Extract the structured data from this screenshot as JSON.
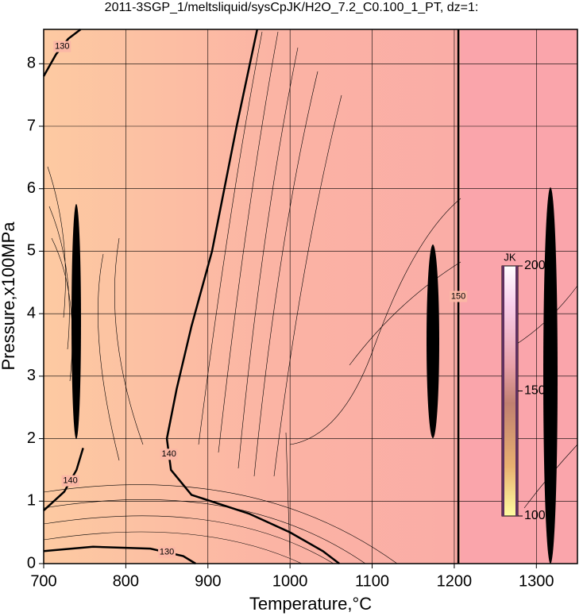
{
  "chart_data": {
    "type": "contour",
    "title": "2011-3SGP_1/meltsliquid/sysCpJK/H2O_7.2_C0.100_1_PT, dz=1:",
    "xlabel": "Temperature,°C",
    "ylabel": "Pressure,x100MPa",
    "xlim": [
      700,
      1350
    ],
    "ylim": [
      0,
      8.55
    ],
    "xticks": [
      700,
      800,
      900,
      1000,
      1100,
      1200,
      1300
    ],
    "yticks": [
      0,
      1,
      2,
      3,
      4,
      5,
      6,
      7,
      8
    ],
    "grid": true,
    "contours": [
      {
        "level": 140,
        "x": [
          960,
          935,
          905,
          880,
          862,
          850,
          855,
          880,
          950,
          1000,
          1040,
          1060
        ],
        "y": [
          8.55,
          7,
          5,
          3.8,
          2.8,
          2,
          1.5,
          1.1,
          0.8,
          0.5,
          0.2,
          0
        ]
      },
      {
        "level": 150,
        "x": [
          1205,
          1205
        ],
        "y": [
          0,
          8.55
        ]
      },
      {
        "level": 130,
        "x": [
          700,
          760,
          830,
          870,
          885
        ],
        "y": [
          0.2,
          0.27,
          0.24,
          0.12,
          0
        ]
      },
      {
        "level": 130,
        "x": [
          700,
          715,
          730,
          745
        ],
        "y": [
          7.8,
          8.15,
          8.4,
          8.55
        ]
      },
      {
        "level": 140,
        "x": [
          700,
          725,
          740,
          748
        ],
        "y": [
          0.85,
          1.15,
          1.5,
          1.85
        ]
      }
    ],
    "colorbar": {
      "label": "JK",
      "clim": [
        100,
        200
      ],
      "ticks": [
        100,
        150,
        200
      ]
    }
  }
}
